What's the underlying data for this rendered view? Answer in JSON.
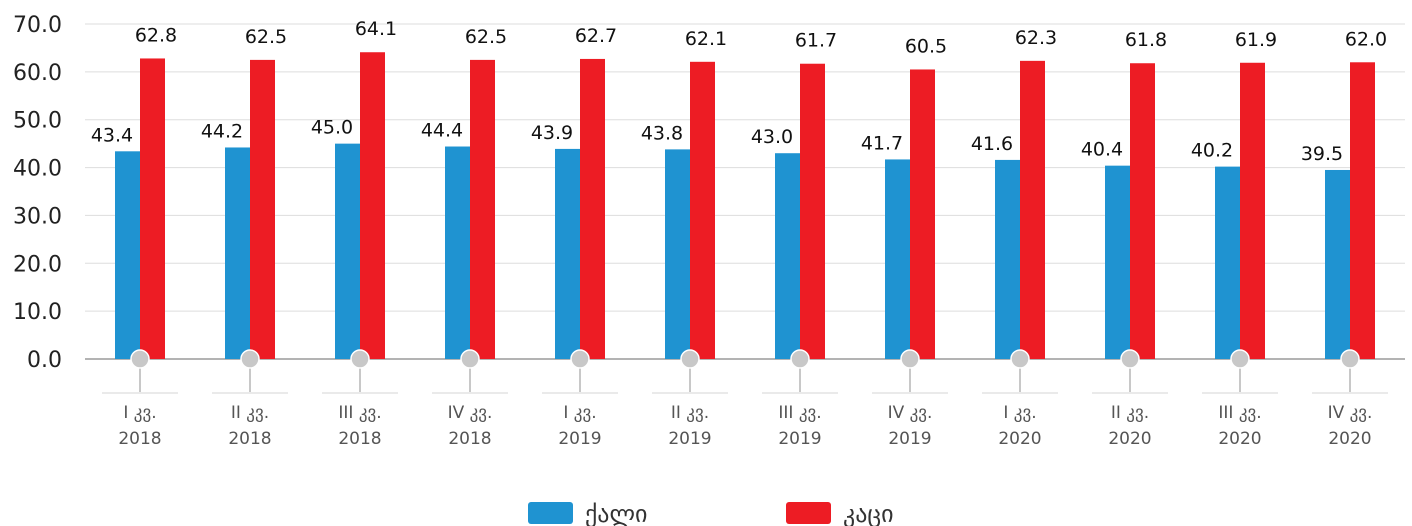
{
  "chart_data": {
    "type": "bar",
    "categories": [
      [
        "I კვ.",
        "2018"
      ],
      [
        "II კვ.",
        "2018"
      ],
      [
        "III კვ.",
        "2018"
      ],
      [
        "IV კვ.",
        "2018"
      ],
      [
        "I კვ.",
        "2019"
      ],
      [
        "II კვ.",
        "2019"
      ],
      [
        "III კვ.",
        "2019"
      ],
      [
        "IV კვ.",
        "2019"
      ],
      [
        "I კვ.",
        "2020"
      ],
      [
        "II კვ.",
        "2020"
      ],
      [
        "III კვ.",
        "2020"
      ],
      [
        "IV კვ.",
        "2020"
      ]
    ],
    "series": [
      {
        "name": "ქალი",
        "color": "#1f93d1",
        "values": [
          43.4,
          44.2,
          45.0,
          44.4,
          43.9,
          43.8,
          43.0,
          41.7,
          41.6,
          40.4,
          40.2,
          39.5
        ]
      },
      {
        "name": "კაცი",
        "color": "#ed1c24",
        "values": [
          62.8,
          62.5,
          64.1,
          62.5,
          62.7,
          62.1,
          61.7,
          60.5,
          62.3,
          61.8,
          61.9,
          62.0
        ]
      }
    ],
    "ylim": [
      0,
      70
    ],
    "yticks": [
      "0.0",
      "10.0",
      "20.0",
      "30.0",
      "40.0",
      "50.0",
      "60.0",
      "70.0"
    ],
    "grid": true,
    "legend_position": "bottom-center"
  }
}
